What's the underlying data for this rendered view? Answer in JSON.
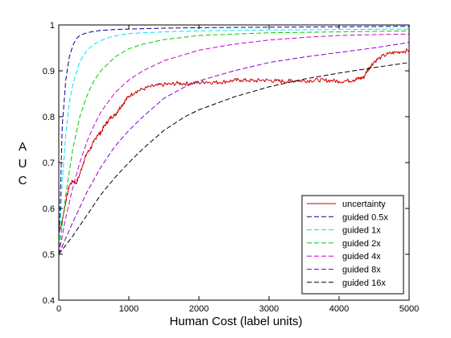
{
  "chart_data": {
    "type": "line",
    "title": "",
    "xlabel": "Human Cost (label units)",
    "ylabel_letters": [
      "A",
      "U",
      "C"
    ],
    "xlim": [
      0,
      5000
    ],
    "ylim": [
      0.4,
      1.0
    ],
    "xticks": [
      0,
      1000,
      2000,
      3000,
      4000,
      5000
    ],
    "yticks": [
      0.4,
      0.5,
      0.6,
      0.7,
      0.8,
      0.9,
      1
    ],
    "xtick_labels": [
      "0",
      "1000",
      "2000",
      "3000",
      "4000",
      "5000"
    ],
    "ytick_labels": [
      "0.4",
      "0.5",
      "0.6",
      "0.7",
      "0.8",
      "0.9",
      "1"
    ],
    "grid": false,
    "legend_position": "bottom-right",
    "series": [
      {
        "name": "uncertainty",
        "color": "#cc0000",
        "style": "solid",
        "noise": true,
        "x": [
          0,
          25,
          50,
          100,
          150,
          200,
          250,
          300,
          350,
          400,
          450,
          500,
          550,
          600,
          650,
          700,
          750,
          800,
          850,
          900,
          950,
          1000,
          1100,
          1200,
          1300,
          1400,
          1500,
          1600,
          1700,
          1800,
          1900,
          2000,
          2100,
          2200,
          2300,
          2400,
          2500,
          2600,
          2700,
          2800,
          2900,
          3000,
          3100,
          3200,
          3300,
          3400,
          3500,
          3600,
          3700,
          3800,
          3900,
          4000,
          4100,
          4200,
          4250,
          4300,
          4350,
          4400,
          4450,
          4500,
          4600,
          4700,
          4800,
          4900,
          5000
        ],
        "y": [
          0.565,
          0.555,
          0.575,
          0.615,
          0.65,
          0.66,
          0.655,
          0.675,
          0.7,
          0.72,
          0.73,
          0.745,
          0.76,
          0.765,
          0.78,
          0.79,
          0.8,
          0.803,
          0.815,
          0.825,
          0.835,
          0.845,
          0.855,
          0.86,
          0.865,
          0.868,
          0.87,
          0.871,
          0.873,
          0.872,
          0.873,
          0.874,
          0.876,
          0.875,
          0.875,
          0.877,
          0.879,
          0.88,
          0.879,
          0.878,
          0.88,
          0.879,
          0.878,
          0.877,
          0.878,
          0.879,
          0.878,
          0.879,
          0.88,
          0.879,
          0.879,
          0.877,
          0.878,
          0.88,
          0.882,
          0.884,
          0.885,
          0.9,
          0.91,
          0.92,
          0.93,
          0.937,
          0.94,
          0.942,
          0.945
        ]
      },
      {
        "name": "guided 0.5x",
        "color": "#000099",
        "style": "dashed",
        "x": [
          0,
          50,
          100,
          150,
          200,
          250,
          300,
          400,
          500,
          600,
          700,
          800,
          1000,
          1500,
          2000,
          3000,
          4000,
          5000
        ],
        "y": [
          0.5,
          0.78,
          0.88,
          0.93,
          0.955,
          0.97,
          0.977,
          0.983,
          0.986,
          0.988,
          0.989,
          0.99,
          0.991,
          0.993,
          0.994,
          0.995,
          0.996,
          0.997
        ]
      },
      {
        "name": "guided 1x",
        "color": "#00e5ee",
        "style": "dashed",
        "x": [
          0,
          50,
          100,
          150,
          200,
          300,
          400,
          500,
          600,
          700,
          800,
          1000,
          1200,
          1500,
          2000,
          3000,
          4000,
          5000
        ],
        "y": [
          0.5,
          0.66,
          0.76,
          0.83,
          0.87,
          0.92,
          0.945,
          0.958,
          0.966,
          0.972,
          0.976,
          0.981,
          0.983,
          0.985,
          0.987,
          0.989,
          0.99,
          0.991
        ]
      },
      {
        "name": "guided 2x",
        "color": "#00cc00",
        "style": "dashed",
        "x": [
          0,
          100,
          200,
          300,
          400,
          500,
          600,
          800,
          1000,
          1200,
          1500,
          2000,
          2500,
          3000,
          4000,
          5000
        ],
        "y": [
          0.5,
          0.63,
          0.73,
          0.8,
          0.845,
          0.878,
          0.9,
          0.93,
          0.948,
          0.958,
          0.968,
          0.977,
          0.98,
          0.983,
          0.985,
          0.987
        ]
      },
      {
        "name": "guided 4x",
        "color": "#cc00cc",
        "style": "dashed",
        "x": [
          0,
          100,
          200,
          300,
          400,
          500,
          600,
          800,
          1000,
          1200,
          1500,
          2000,
          2500,
          3000,
          3500,
          4000,
          4500,
          5000
        ],
        "y": [
          0.5,
          0.58,
          0.645,
          0.7,
          0.745,
          0.78,
          0.81,
          0.852,
          0.88,
          0.9,
          0.922,
          0.945,
          0.958,
          0.967,
          0.973,
          0.977,
          0.979,
          0.98
        ]
      },
      {
        "name": "guided 8x",
        "color": "#8800cc",
        "style": "dashed",
        "x": [
          0,
          200,
          400,
          600,
          800,
          1000,
          1200,
          1500,
          1800,
          2000,
          2500,
          3000,
          3500,
          4000,
          4500,
          5000
        ],
        "y": [
          0.5,
          0.57,
          0.635,
          0.69,
          0.735,
          0.77,
          0.8,
          0.84,
          0.865,
          0.878,
          0.9,
          0.918,
          0.93,
          0.94,
          0.95,
          0.962
        ]
      },
      {
        "name": "guided 16x",
        "color": "#000000",
        "style": "dashed",
        "x": [
          0,
          200,
          400,
          600,
          800,
          1000,
          1200,
          1500,
          1800,
          2000,
          2500,
          3000,
          3500,
          4000,
          4500,
          5000
        ],
        "y": [
          0.5,
          0.54,
          0.585,
          0.63,
          0.667,
          0.7,
          0.73,
          0.77,
          0.8,
          0.815,
          0.843,
          0.865,
          0.882,
          0.895,
          0.907,
          0.918
        ]
      }
    ]
  }
}
